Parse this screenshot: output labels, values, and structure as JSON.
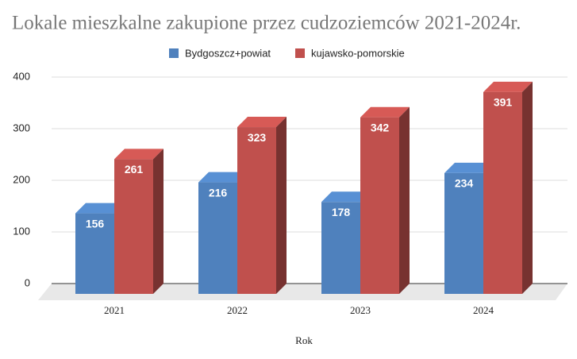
{
  "chart_data": {
    "type": "bar3d",
    "title": "Lokale mieszkalne zakupione przez cudzoziemców 2021-2024r.",
    "x_label": "Rok",
    "categories": [
      "2021",
      "2022",
      "2023",
      "2024"
    ],
    "series": [
      {
        "name": "Bydgoszcz+powiat",
        "color": "#4f81bd",
        "values": [
          156,
          216,
          178,
          234
        ]
      },
      {
        "name": "kujawsko-pomorskie",
        "color": "#c0504d",
        "values": [
          261,
          323,
          342,
          391
        ]
      }
    ],
    "ylim": [
      0,
      400
    ],
    "yticks": [
      0,
      100,
      200,
      300,
      400
    ],
    "grid": true,
    "legend": "top"
  }
}
